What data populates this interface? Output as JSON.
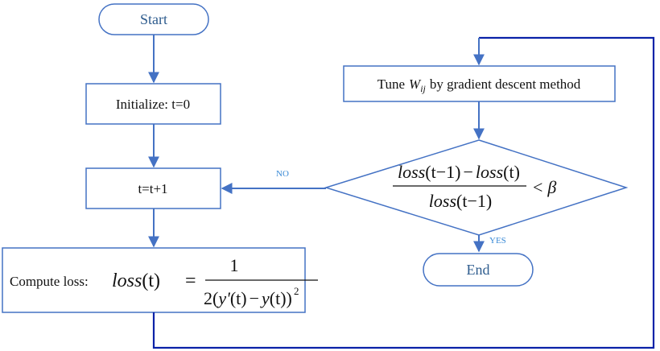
{
  "colors": {
    "box_stroke": "#4472c4",
    "arrow": "#4472c4",
    "loop_line": "#0a22a8",
    "terminal_text": "#2e5c8e",
    "edge_label": "#3a8ad6",
    "text": "#111111"
  },
  "nodes": {
    "start": {
      "label": "Start"
    },
    "initialize": {
      "label": "Initialize: t=0"
    },
    "increment": {
      "label": "t=t+1"
    },
    "compute": {
      "prefix": "Compute loss:",
      "lhs_fn": "loss",
      "lhs_arg": "(t)",
      "equals": "=",
      "numerator": "1",
      "den_open": "2(",
      "den_y_prime": "y'",
      "den_t1": "(t)",
      "den_minus": "−",
      "den_y": "y",
      "den_t2": "(t))",
      "den_exp": "2"
    },
    "tune": {
      "prefix": "Tune",
      "weight_symbol": "W",
      "weight_subscript": "ij",
      "suffix": "by gradient descent method"
    },
    "decision": {
      "num_fn1": "loss",
      "num_arg1": "(t",
      "num_minus1": "−",
      "num_one1": "1)",
      "num_minus2": "−",
      "num_fn2": "loss",
      "num_arg2": "(t)",
      "den_fn": "loss",
      "den_arg": "(t",
      "den_minus": "−",
      "den_one": "1)",
      "compare": "<",
      "threshold": "β"
    },
    "end": {
      "label": "End"
    }
  },
  "edges": {
    "no_label": "NO",
    "yes_label": "YES"
  }
}
